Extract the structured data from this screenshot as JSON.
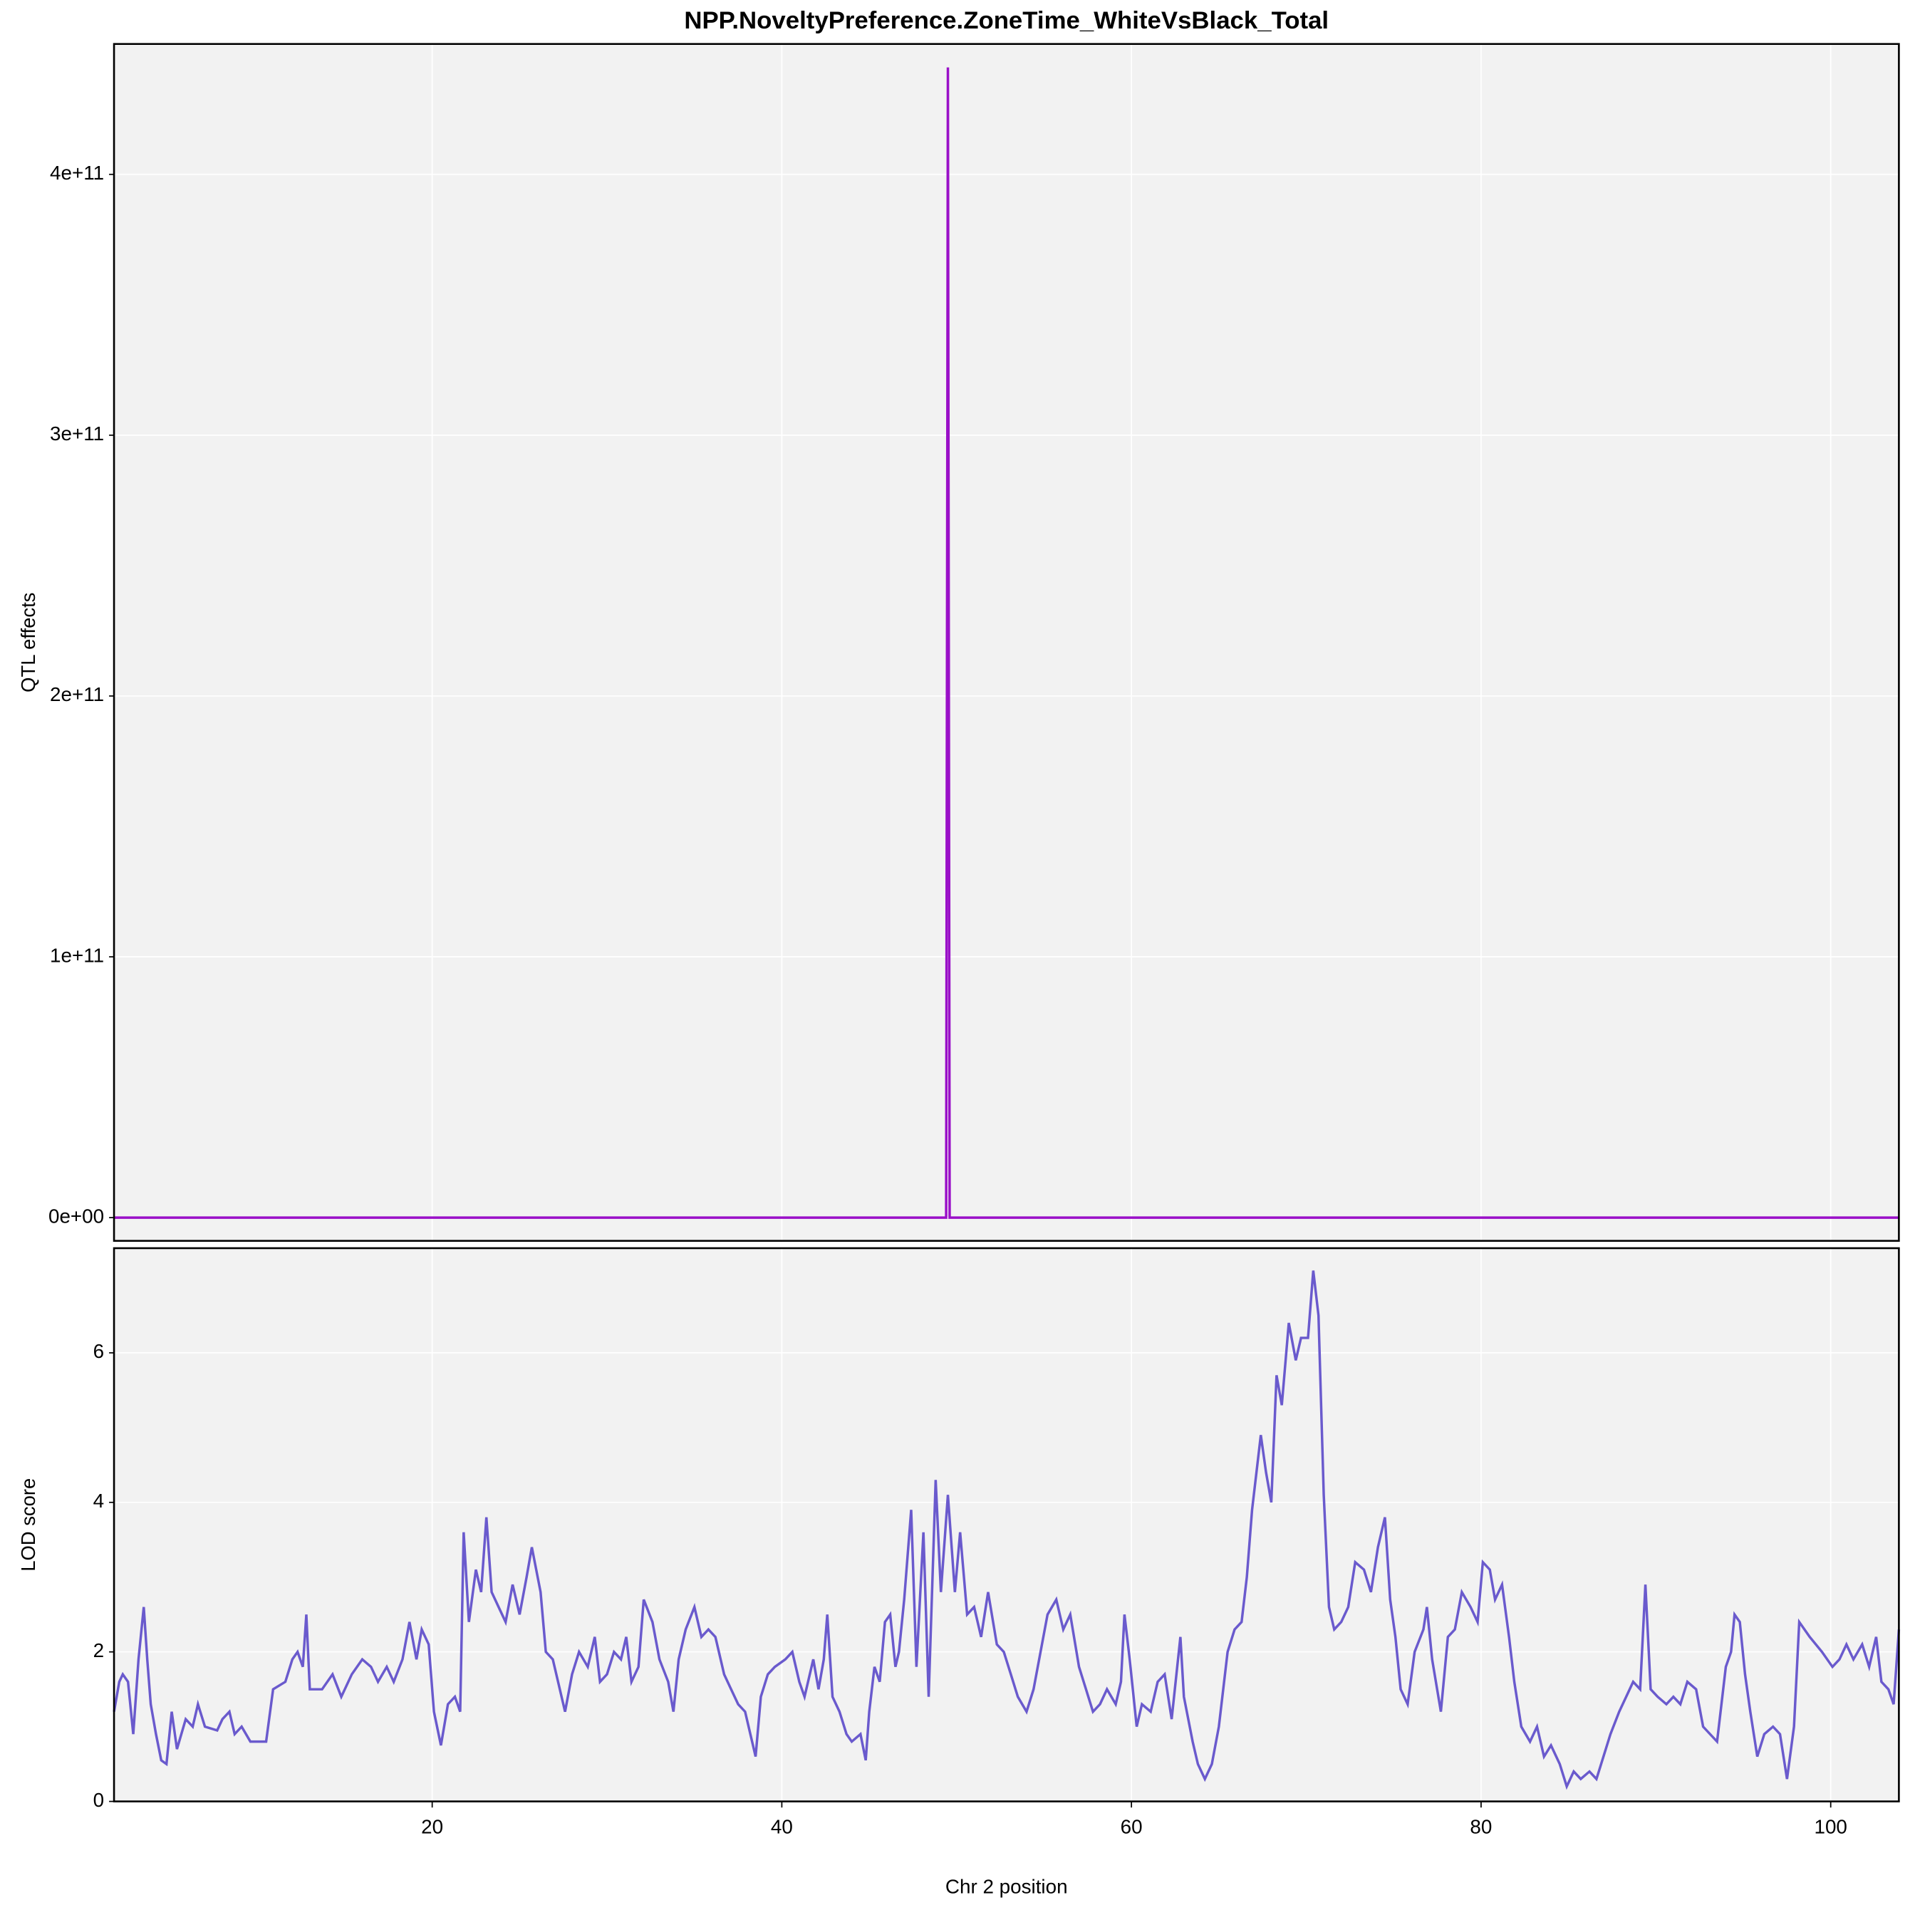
{
  "chart_data": [
    {
      "type": "line",
      "title": "NPP.NoveltyPreference.ZoneTime_WhiteVsBlack_Total",
      "ylabel": "QTL effects",
      "x": [
        1.8,
        49.4,
        49.5,
        49.6,
        103.9
      ],
      "series": [
        {
          "color": "#9a10c8",
          "values": [
            0,
            0,
            441000000000,
            0,
            0
          ]
        }
      ],
      "xlim": [
        1.8,
        103.9
      ],
      "xticks": [
        20,
        40,
        60,
        80,
        100
      ],
      "ylim": [
        -8900000000,
        450000000000
      ],
      "yticks": [
        {
          "value": 0,
          "label": "0e+00"
        },
        {
          "value": 100000000000,
          "label": "1e+11"
        },
        {
          "value": 200000000000,
          "label": "2e+11"
        },
        {
          "value": 300000000000,
          "label": "3e+11"
        },
        {
          "value": 400000000000,
          "label": "4e+11"
        }
      ],
      "grid": true
    },
    {
      "type": "line",
      "xlabel": "Chr 2 position",
      "ylabel": "LOD score",
      "x": [
        1.8,
        2.1,
        2.3,
        2.6,
        2.9,
        3.2,
        3.5,
        3.7,
        3.9,
        4.2,
        4.5,
        4.8,
        5.1,
        5.4,
        5.9,
        6.3,
        6.6,
        7.0,
        7.7,
        8.0,
        8.4,
        8.7,
        9.1,
        9.6,
        10.5,
        10.9,
        11.6,
        12.0,
        12.3,
        12.6,
        12.8,
        13.0,
        13.7,
        14.3,
        14.8,
        15.4,
        16.0,
        16.5,
        16.9,
        17.4,
        17.8,
        18.3,
        18.7,
        19.1,
        19.4,
        19.8,
        20.1,
        20.5,
        20.9,
        21.3,
        21.6,
        21.8,
        22.1,
        22.5,
        22.8,
        23.1,
        23.4,
        23.8,
        24.2,
        24.6,
        25.0,
        25.4,
        25.7,
        26.2,
        26.5,
        26.9,
        27.3,
        27.6,
        28.0,
        28.4,
        28.9,
        29.3,
        29.6,
        30.0,
        30.4,
        30.8,
        31.1,
        31.4,
        31.8,
        32.1,
        32.6,
        33.0,
        33.5,
        33.8,
        34.1,
        34.5,
        35.0,
        35.4,
        35.8,
        36.2,
        36.7,
        37.1,
        37.5,
        37.9,
        38.2,
        38.5,
        38.8,
        39.2,
        39.6,
        40.2,
        40.6,
        41.0,
        41.3,
        41.8,
        42.1,
        42.4,
        42.6,
        42.9,
        43.3,
        43.7,
        44.0,
        44.5,
        44.8,
        45.0,
        45.3,
        45.6,
        45.9,
        46.2,
        46.5,
        46.7,
        47.0,
        47.4,
        47.7,
        48.1,
        48.4,
        48.8,
        49.1,
        49.5,
        49.9,
        50.2,
        50.6,
        51.0,
        51.4,
        51.8,
        52.3,
        52.7,
        53.1,
        53.5,
        54.0,
        54.4,
        54.8,
        55.2,
        55.7,
        56.1,
        56.5,
        57.0,
        57.4,
        57.8,
        58.2,
        58.6,
        59.1,
        59.4,
        59.6,
        59.9,
        60.3,
        60.6,
        61.1,
        61.5,
        61.9,
        62.3,
        62.8,
        63.0,
        63.5,
        63.8,
        64.2,
        64.6,
        65.0,
        65.5,
        65.9,
        66.3,
        66.6,
        66.9,
        67.2,
        67.4,
        67.7,
        68.0,
        68.3,
        68.6,
        69.0,
        69.4,
        69.7,
        70.1,
        70.4,
        70.7,
        71.0,
        71.3,
        71.6,
        72.0,
        72.4,
        72.8,
        73.3,
        73.7,
        74.1,
        74.5,
        74.8,
        75.1,
        75.4,
        75.8,
        76.2,
        76.7,
        76.9,
        77.2,
        77.7,
        78.1,
        78.5,
        78.9,
        79.4,
        79.8,
        80.1,
        80.5,
        80.8,
        81.2,
        81.6,
        81.9,
        82.3,
        82.8,
        83.2,
        83.6,
        84.0,
        84.5,
        84.9,
        85.3,
        85.7,
        86.2,
        86.6,
        87.0,
        87.4,
        87.9,
        88.3,
        88.7,
        89.1,
        89.4,
        89.7,
        90.1,
        90.6,
        91.0,
        91.4,
        91.8,
        92.3,
        92.7,
        93.1,
        93.5,
        94.0,
        94.3,
        94.5,
        94.8,
        95.1,
        95.4,
        95.8,
        96.2,
        96.7,
        97.1,
        97.5,
        97.9,
        98.2,
        98.8,
        99.5,
        100.1,
        100.5,
        100.9,
        101.3,
        101.8,
        102.2,
        102.6,
        102.9,
        103.3,
        103.6,
        103.9
      ],
      "series": [
        {
          "color": "#6a5acd",
          "values": [
            1.2,
            1.6,
            1.7,
            1.6,
            0.9,
            1.9,
            2.6,
            1.9,
            1.3,
            0.9,
            0.55,
            0.5,
            1.2,
            0.7,
            1.1,
            1.0,
            1.3,
            1.0,
            0.95,
            1.1,
            1.2,
            0.9,
            1.0,
            0.8,
            0.8,
            1.5,
            1.6,
            1.9,
            2.0,
            1.8,
            2.5,
            1.5,
            1.5,
            1.7,
            1.4,
            1.7,
            1.9,
            1.8,
            1.6,
            1.8,
            1.6,
            1.9,
            2.4,
            1.9,
            2.3,
            2.1,
            1.2,
            0.75,
            1.3,
            1.4,
            1.2,
            3.6,
            2.4,
            3.1,
            2.8,
            3.8,
            2.8,
            2.6,
            2.4,
            2.9,
            2.5,
            3.0,
            3.4,
            2.8,
            2.0,
            1.9,
            1.5,
            1.2,
            1.7,
            2.0,
            1.8,
            2.2,
            1.6,
            1.7,
            2.0,
            1.9,
            2.2,
            1.6,
            1.8,
            2.7,
            2.4,
            1.9,
            1.6,
            1.2,
            1.9,
            2.3,
            2.6,
            2.2,
            2.3,
            2.2,
            1.7,
            1.5,
            1.3,
            1.2,
            0.9,
            0.6,
            1.4,
            1.7,
            1.8,
            1.9,
            2.0,
            1.6,
            1.4,
            1.9,
            1.5,
            1.9,
            2.5,
            1.4,
            1.2,
            0.9,
            0.8,
            0.9,
            0.55,
            1.2,
            1.8,
            1.6,
            2.4,
            2.5,
            1.8,
            2.0,
            2.7,
            3.9,
            1.8,
            3.6,
            1.4,
            4.3,
            2.8,
            4.1,
            2.8,
            3.6,
            2.5,
            2.6,
            2.2,
            2.8,
            2.1,
            2.0,
            1.7,
            1.4,
            1.2,
            1.5,
            2.0,
            2.5,
            2.7,
            2.3,
            2.5,
            1.8,
            1.5,
            1.2,
            1.3,
            1.5,
            1.3,
            1.6,
            2.5,
            1.9,
            1.0,
            1.3,
            1.2,
            1.6,
            1.7,
            1.1,
            2.2,
            1.4,
            0.8,
            0.5,
            0.3,
            0.5,
            1.0,
            2.0,
            2.3,
            2.4,
            3.0,
            3.9,
            4.5,
            4.9,
            4.4,
            4.0,
            5.7,
            5.3,
            6.4,
            5.9,
            6.2,
            6.2,
            7.1,
            6.5,
            4.1,
            2.6,
            2.3,
            2.4,
            2.6,
            3.2,
            3.1,
            2.8,
            3.4,
            3.8,
            2.7,
            2.2,
            1.5,
            1.3,
            2.0,
            2.3,
            2.6,
            1.9,
            1.2,
            2.2,
            2.3,
            2.8,
            2.6,
            2.4,
            3.2,
            3.1,
            2.7,
            2.9,
            2.2,
            1.6,
            1.0,
            0.8,
            1.0,
            0.6,
            0.75,
            0.5,
            0.2,
            0.4,
            0.3,
            0.4,
            0.3,
            0.6,
            0.9,
            1.2,
            1.4,
            1.6,
            1.5,
            2.9,
            1.5,
            1.4,
            1.3,
            1.4,
            1.3,
            1.6,
            1.5,
            1.0,
            0.9,
            0.8,
            1.8,
            2.0,
            2.5,
            2.4,
            1.7,
            1.2,
            0.6,
            0.9,
            1.0,
            0.9,
            0.3,
            1.0,
            2.4,
            2.2,
            2.0,
            1.8,
            1.9,
            2.1,
            1.9,
            2.1,
            1.8,
            2.2,
            1.6,
            1.5,
            1.3,
            2.3
          ]
        }
      ],
      "xlim": [
        1.8,
        103.9
      ],
      "xticks": [
        20,
        40,
        60,
        80,
        100
      ],
      "ylim": [
        0,
        7.4
      ],
      "yticks": [
        0,
        2,
        4,
        6
      ],
      "grid": true
    }
  ]
}
